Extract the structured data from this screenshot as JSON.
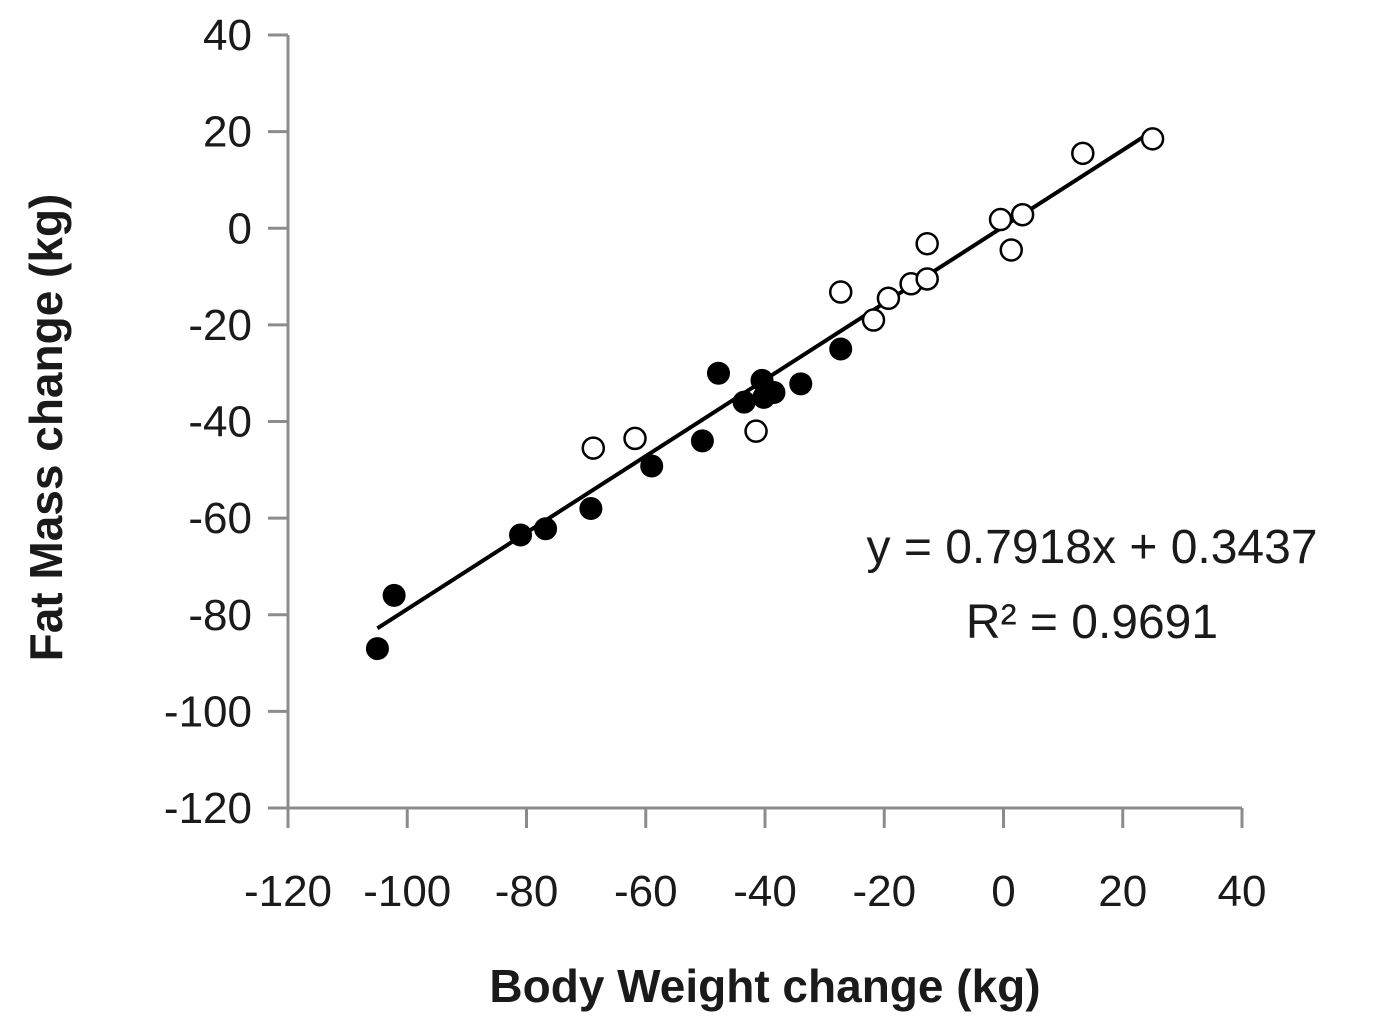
{
  "chart_data": {
    "type": "scatter",
    "xlabel": "Body Weight change (kg)",
    "ylabel": "Fat Mass change (kg)",
    "xlim": [
      -120,
      40
    ],
    "ylim": [
      -120,
      40
    ],
    "x_ticks": [
      -120,
      -100,
      -80,
      -60,
      -40,
      -20,
      0,
      20,
      40
    ],
    "y_ticks": [
      -120,
      -100,
      -80,
      -60,
      -40,
      -20,
      0,
      20,
      40
    ],
    "x_tick_labels": [
      "-120",
      "-100",
      "-80",
      "-60",
      "-40",
      "-20",
      "0",
      "20",
      "40"
    ],
    "y_tick_labels": [
      "-120",
      "-100",
      "-80",
      "-60",
      "-40",
      "-20",
      "0",
      "20",
      "40"
    ],
    "grid": false,
    "legend": "none",
    "series": [
      {
        "marker": "filled-circle",
        "color": "#000000",
        "points": [
          [
            -105,
            -87
          ],
          [
            -102.2,
            -76
          ],
          [
            -81,
            -63.5
          ],
          [
            -76.8,
            -62.2
          ],
          [
            -69.2,
            -58
          ],
          [
            -59,
            -49.2
          ],
          [
            -50.5,
            -44
          ],
          [
            -47.8,
            -30
          ],
          [
            -43.5,
            -36
          ],
          [
            -40.5,
            -31.5
          ],
          [
            -40.2,
            -35
          ],
          [
            -38.5,
            -34
          ],
          [
            -34,
            -32.2
          ],
          [
            -27.3,
            -25
          ]
        ]
      },
      {
        "marker": "open-circle",
        "color": "#000000",
        "points": [
          [
            -68.8,
            -45.5
          ],
          [
            -61.8,
            -43.5
          ],
          [
            -41.5,
            -42
          ],
          [
            -27.3,
            -13.2
          ],
          [
            -21.8,
            -19
          ],
          [
            -19.3,
            -14.5
          ],
          [
            -15.5,
            -11.5
          ],
          [
            -12.8,
            -10.5
          ],
          [
            -12.8,
            -3.2
          ],
          [
            -0.5,
            1.8
          ],
          [
            1.3,
            -4.5
          ],
          [
            3.2,
            2.8
          ],
          [
            13.3,
            15.5
          ],
          [
            25,
            18.5
          ]
        ]
      }
    ],
    "trendline": {
      "type": "linear",
      "slope": 0.7918,
      "intercept": 0.3437,
      "x_range": [
        -105,
        25
      ],
      "color": "#000000"
    },
    "annotations": {
      "equation": "y = 0.7918x + 0.3437",
      "r2": "R² = 0.9691"
    }
  }
}
